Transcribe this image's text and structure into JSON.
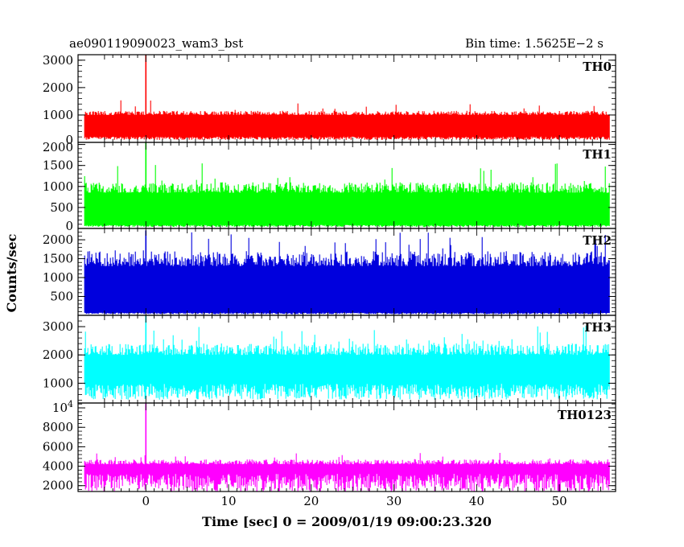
{
  "header": {
    "title_left": "ae090119090023_wam3_bst",
    "title_right": "Bin time: 1.5625E−2 s"
  },
  "chart_data": {
    "type": "line",
    "xlabel": "Time [sec] 0 = 2009/01/19 09:00:23.320",
    "ylabel": "Counts/sec",
    "xlim": [
      -8.2,
      56.8
    ],
    "x_ticks": [
      0,
      10,
      20,
      30,
      40,
      50
    ],
    "x_data_range": [
      -7.4,
      56.1
    ],
    "grid": false,
    "panels": [
      {
        "name": "TH0",
        "color": "#ff0000",
        "ylim": [
          0,
          3200
        ],
        "y_ticks": [
          0,
          1000,
          2000,
          3000
        ],
        "y_tick_labels": [
          "0",
          "1000",
          "2000",
          "3000"
        ],
        "baseline_min": 150,
        "baseline_max": 1000,
        "typical_peak": 1150,
        "max_fluct": 1650,
        "spike": {
          "x": 0,
          "value": 3200
        }
      },
      {
        "name": "TH1",
        "color": "#00ff00",
        "ylim": [
          0,
          2050
        ],
        "y_ticks": [
          0,
          500,
          1000,
          1500,
          2000
        ],
        "y_tick_labels": [
          "0",
          "500",
          "1000",
          "1500",
          "2000"
        ],
        "baseline_min": 60,
        "baseline_max": 850,
        "typical_peak": 1100,
        "max_fluct": 1550,
        "spike": {
          "x": 0,
          "value": 2050
        }
      },
      {
        "name": "TH2",
        "color": "#0000dd",
        "ylim": [
          0,
          2300
        ],
        "y_ticks": [
          500,
          1000,
          1500,
          2000
        ],
        "y_tick_labels": [
          "500",
          "1000",
          "1500",
          "2000"
        ],
        "baseline_min": 50,
        "baseline_max": 1300,
        "typical_peak": 1700,
        "max_fluct": 2200,
        "spike": {
          "x": 0,
          "value": 2250
        }
      },
      {
        "name": "TH3",
        "color": "#00ffff",
        "ylim": [
          300,
          3400
        ],
        "y_ticks": [
          1000,
          2000,
          3000
        ],
        "y_tick_labels": [
          "1000",
          "2000",
          "3000"
        ],
        "baseline_min": 700,
        "baseline_max": 2000,
        "typical_peak": 2400,
        "max_fluct": 3050,
        "spike": {
          "x": 0,
          "value": 3400
        }
      },
      {
        "name": "TH0123",
        "color": "#ff00ff",
        "ylim": [
          1400,
          10500
        ],
        "y_ticks": [
          2000,
          4000,
          6000,
          8000,
          10000
        ],
        "y_tick_labels": [
          "2000",
          "4000",
          "6000",
          "8000",
          "10⁴"
        ],
        "baseline_min": 2300,
        "baseline_max": 4200,
        "typical_peak": 4700,
        "max_fluct": 5400,
        "spike": {
          "x": 0,
          "value": 10500
        }
      }
    ]
  }
}
